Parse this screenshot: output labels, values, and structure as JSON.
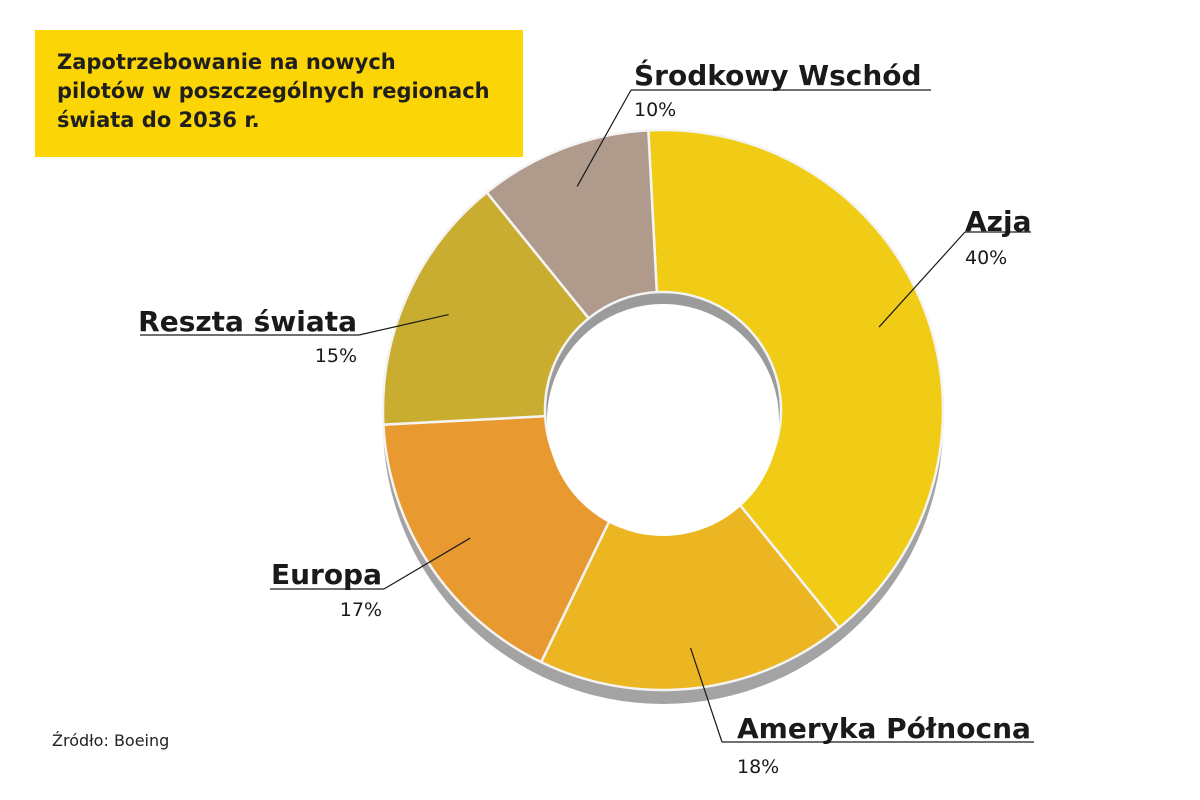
{
  "chart_data": {
    "type": "pie",
    "variant": "donut",
    "title_lines": [
      "Zapotrzebowanie na nowych",
      "pilotów w poszczególnych regionach",
      "świata do 2036 r."
    ],
    "slices": [
      {
        "label": "Azja",
        "value": 40,
        "value_label": "40%",
        "color": "#f1cc16"
      },
      {
        "label": "Ameryka Północna",
        "value": 18,
        "value_label": "18%",
        "color": "#ecb522"
      },
      {
        "label": "Europa",
        "value": 17,
        "value_label": "17%",
        "color": "#e89a30"
      },
      {
        "label": "Reszta świata",
        "value": 15,
        "value_label": "15%",
        "color": "#c9ad31"
      },
      {
        "label": "Środkowy Wschód",
        "value": 10,
        "value_label": "10%",
        "color": "#b09a8c"
      }
    ],
    "source": "Źródło: Boeing"
  }
}
